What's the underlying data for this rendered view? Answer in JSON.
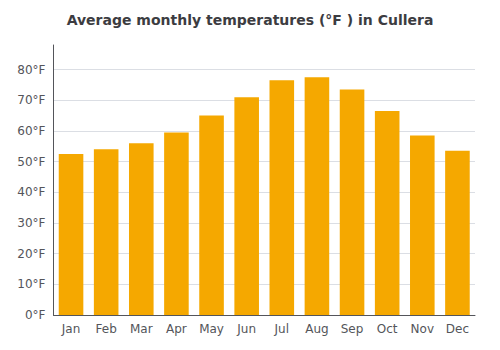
{
  "chart_data": {
    "type": "bar",
    "title": "Average monthly temperatures (°F ) in Cullera",
    "categories": [
      "Jan",
      "Feb",
      "Mar",
      "Apr",
      "May",
      "Jun",
      "Jul",
      "Aug",
      "Sep",
      "Oct",
      "Nov",
      "Dec"
    ],
    "values": [
      52.5,
      54.0,
      56.0,
      59.5,
      65.0,
      71.0,
      76.5,
      77.5,
      73.5,
      66.5,
      58.5,
      53.5
    ],
    "color": "#F5A800",
    "ylim": [
      0,
      88
    ],
    "yticks": [
      {
        "value": 0,
        "label": "0°F"
      },
      {
        "value": 10,
        "label": "10°F"
      },
      {
        "value": 20,
        "label": "20°F"
      },
      {
        "value": 30,
        "label": "30°F"
      },
      {
        "value": 40,
        "label": "40°F"
      },
      {
        "value": 50,
        "label": "50°F"
      },
      {
        "value": 60,
        "label": "60°F"
      },
      {
        "value": 70,
        "label": "70°F"
      },
      {
        "value": 80,
        "label": "80°F"
      }
    ],
    "grid": true
  }
}
